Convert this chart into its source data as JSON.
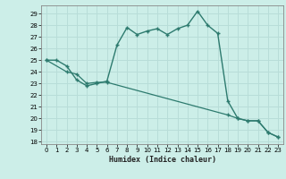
{
  "xlabel": "Humidex (Indice chaleur)",
  "background_color": "#cceee8",
  "grid_color": "#b8ddd8",
  "line_color": "#2d7a6e",
  "xlim": [
    -0.5,
    23.5
  ],
  "ylim": [
    17.8,
    29.7
  ],
  "yticks": [
    18,
    19,
    20,
    21,
    22,
    23,
    24,
    25,
    26,
    27,
    28,
    29
  ],
  "xticks": [
    0,
    1,
    2,
    3,
    4,
    5,
    6,
    7,
    8,
    9,
    10,
    11,
    12,
    13,
    14,
    15,
    16,
    17,
    18,
    19,
    20,
    21,
    22,
    23
  ],
  "curve1_x": [
    0,
    1,
    2,
    3,
    4,
    5,
    6,
    7,
    8,
    9,
    10,
    11,
    12,
    13,
    14,
    15,
    16,
    17,
    18,
    19,
    20,
    21,
    22,
    23
  ],
  "curve1_y": [
    25.0,
    25.0,
    24.5,
    23.3,
    22.8,
    23.0,
    23.2,
    26.3,
    27.8,
    27.2,
    27.5,
    27.7,
    27.2,
    27.7,
    28.0,
    29.2,
    28.0,
    27.3,
    21.5,
    20.0,
    19.8,
    19.8,
    18.8,
    18.4
  ],
  "curve2_x": [
    0,
    2,
    3,
    4,
    5,
    6,
    18,
    19,
    20,
    21,
    22,
    23
  ],
  "curve2_y": [
    25.0,
    24.0,
    23.8,
    23.0,
    23.1,
    23.1,
    20.3,
    20.0,
    19.8,
    19.8,
    18.8,
    18.4
  ]
}
